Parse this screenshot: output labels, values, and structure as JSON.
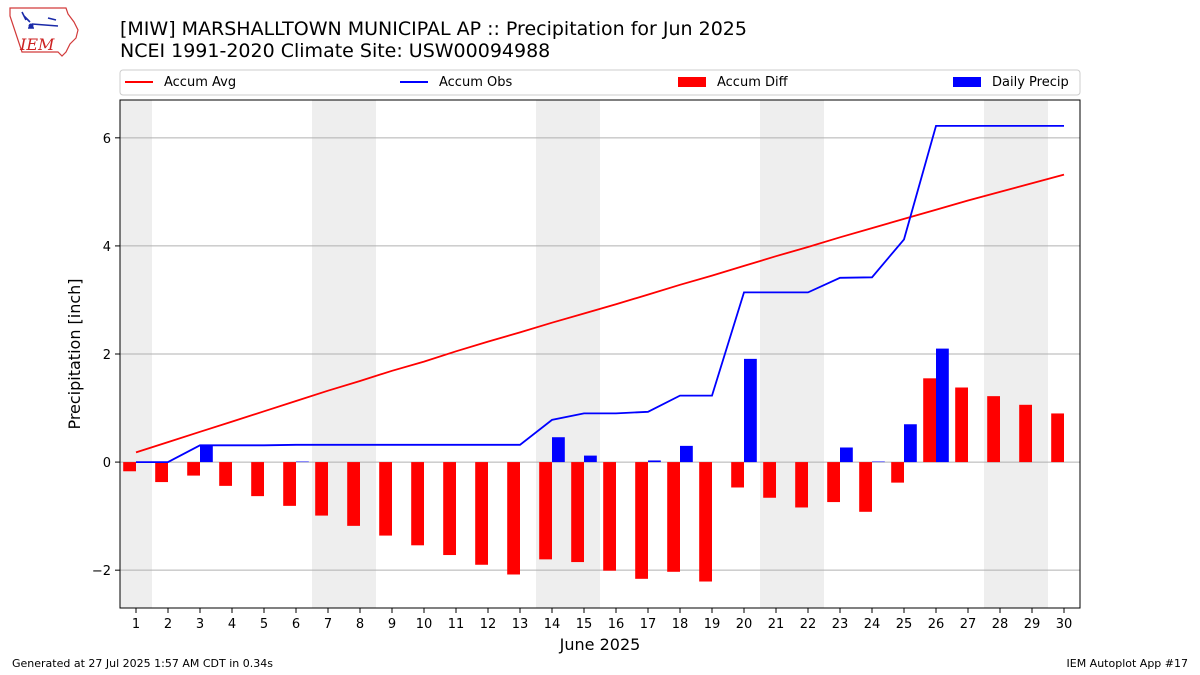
{
  "chart_data": {
    "type": "bar",
    "title": "[MIW] MARSHALLTOWN MUNICIPAL AP :: Precipitation for Jun 2025",
    "subtitle": "NCEI 1991-2020 Climate Site: USW00094988",
    "xlabel": "June 2025",
    "ylabel": "Precipitation [inch]",
    "ylim": [
      -2.7,
      6.7
    ],
    "xlim": [
      0.5,
      30.5
    ],
    "yticks": [
      -2,
      0,
      2,
      4,
      6
    ],
    "xticks": [
      "1",
      "2",
      "3",
      "4",
      "5",
      "6",
      "7",
      "8",
      "9",
      "10",
      "11",
      "12",
      "13",
      "14",
      "15",
      "16",
      "17",
      "18",
      "19",
      "20",
      "21",
      "22",
      "23",
      "24",
      "25",
      "26",
      "27",
      "28",
      "29",
      "30"
    ],
    "grid": "horizontal",
    "legend_placement": "top",
    "weekend_shading": [
      [
        0.5,
        1.5
      ],
      [
        6.5,
        8.5
      ],
      [
        13.5,
        15.5
      ],
      [
        20.5,
        22.5
      ],
      [
        27.5,
        29.5
      ]
    ],
    "days": [
      1,
      2,
      3,
      4,
      5,
      6,
      7,
      8,
      9,
      10,
      11,
      12,
      13,
      14,
      15,
      16,
      17,
      18,
      19,
      20,
      21,
      22,
      23,
      24,
      25,
      26,
      27,
      28,
      29,
      30
    ],
    "series": [
      {
        "name": "Accum Avg",
        "kind": "line",
        "color": "#ff0000",
        "values": [
          0.18,
          0.37,
          0.56,
          0.75,
          0.94,
          1.13,
          1.32,
          1.5,
          1.69,
          1.86,
          2.05,
          2.23,
          2.4,
          2.58,
          2.75,
          2.92,
          3.1,
          3.28,
          3.45,
          3.63,
          3.81,
          3.98,
          4.16,
          4.33,
          4.5,
          4.67,
          4.84,
          5.0,
          5.16,
          5.32
        ]
      },
      {
        "name": "Accum Obs",
        "kind": "line",
        "color": "#0000ff",
        "values": [
          0.0,
          0.0,
          0.31,
          0.31,
          0.31,
          0.32,
          0.32,
          0.32,
          0.32,
          0.32,
          0.32,
          0.32,
          0.32,
          0.78,
          0.9,
          0.9,
          0.93,
          1.23,
          1.23,
          3.14,
          3.14,
          3.14,
          3.41,
          3.42,
          4.12,
          6.22,
          6.22,
          6.22,
          6.22,
          6.22
        ]
      },
      {
        "name": "Accum Diff",
        "kind": "bar",
        "color": "#ff0000",
        "values": [
          -0.17,
          -0.37,
          -0.25,
          -0.44,
          -0.63,
          -0.81,
          -0.99,
          -1.18,
          -1.36,
          -1.54,
          -1.72,
          -1.9,
          -2.08,
          -1.8,
          -1.85,
          -2.01,
          -2.16,
          -2.03,
          -2.21,
          -0.47,
          -0.66,
          -0.84,
          -0.74,
          -0.92,
          -0.38,
          1.55,
          1.38,
          1.22,
          1.06,
          0.9
        ]
      },
      {
        "name": "Daily Precip",
        "kind": "bar",
        "color": "#0000ff",
        "values": [
          0.0,
          0.0,
          0.31,
          0.0,
          0.0,
          0.01,
          0.0,
          0.0,
          0.0,
          0.0,
          0.0,
          0.0,
          0.0,
          0.46,
          0.12,
          0.0,
          0.03,
          0.3,
          0.0,
          1.91,
          0.0,
          0.0,
          0.27,
          0.01,
          0.7,
          2.1,
          0.0,
          0.0,
          0.0,
          0.0
        ]
      }
    ]
  },
  "footer": {
    "left": "Generated at 27 Jul 2025 1:57 AM CDT in 0.34s",
    "right": "IEM Autoplot App #17"
  },
  "logo": {
    "text": "IEM",
    "icon": "iowa-state-outline-icon"
  },
  "colors": {
    "shade": "#eeeeee",
    "grid": "#b0b0b0",
    "accent_red": "#ff0000",
    "accent_blue": "#0000ff",
    "logo_red": "#cc2222"
  }
}
